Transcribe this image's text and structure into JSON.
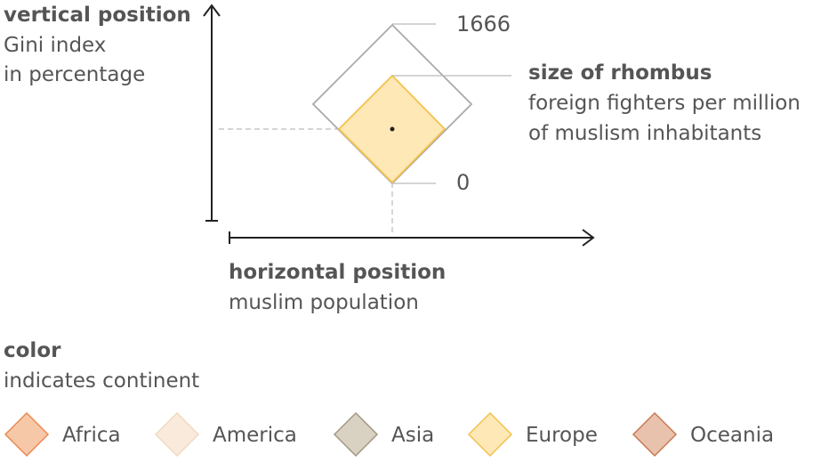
{
  "legend_vertical": {
    "heading": "vertical position",
    "line1": "Gini index",
    "line2": "in percentage"
  },
  "legend_size": {
    "heading": "size of rhombus",
    "line1": "foreign fighters per million",
    "line2": "of muslism inhabitants",
    "max_label": "1666",
    "min_label": "0"
  },
  "legend_horizontal": {
    "heading": "horizontal position",
    "line1": "muslim population"
  },
  "legend_color": {
    "heading": "color",
    "subheading": "indicates continent",
    "items": [
      {
        "label": "Africa",
        "fill": "#f7c8a8",
        "stroke": "#ea8a52"
      },
      {
        "label": "America",
        "fill": "#faeadc",
        "stroke": "#f2d9bf"
      },
      {
        "label": "Asia",
        "fill": "#d9d2c3",
        "stroke": "#a09880"
      },
      {
        "label": "Europe",
        "fill": "#fde8b6",
        "stroke": "#f3c24d"
      },
      {
        "label": "Oceania",
        "fill": "#e9c2ad",
        "stroke": "#c87a52"
      }
    ]
  },
  "colors": {
    "axis": "#222222",
    "big_rhombus": "#aaaaaa",
    "guide": "#bbbbbb",
    "text": "#555555"
  }
}
